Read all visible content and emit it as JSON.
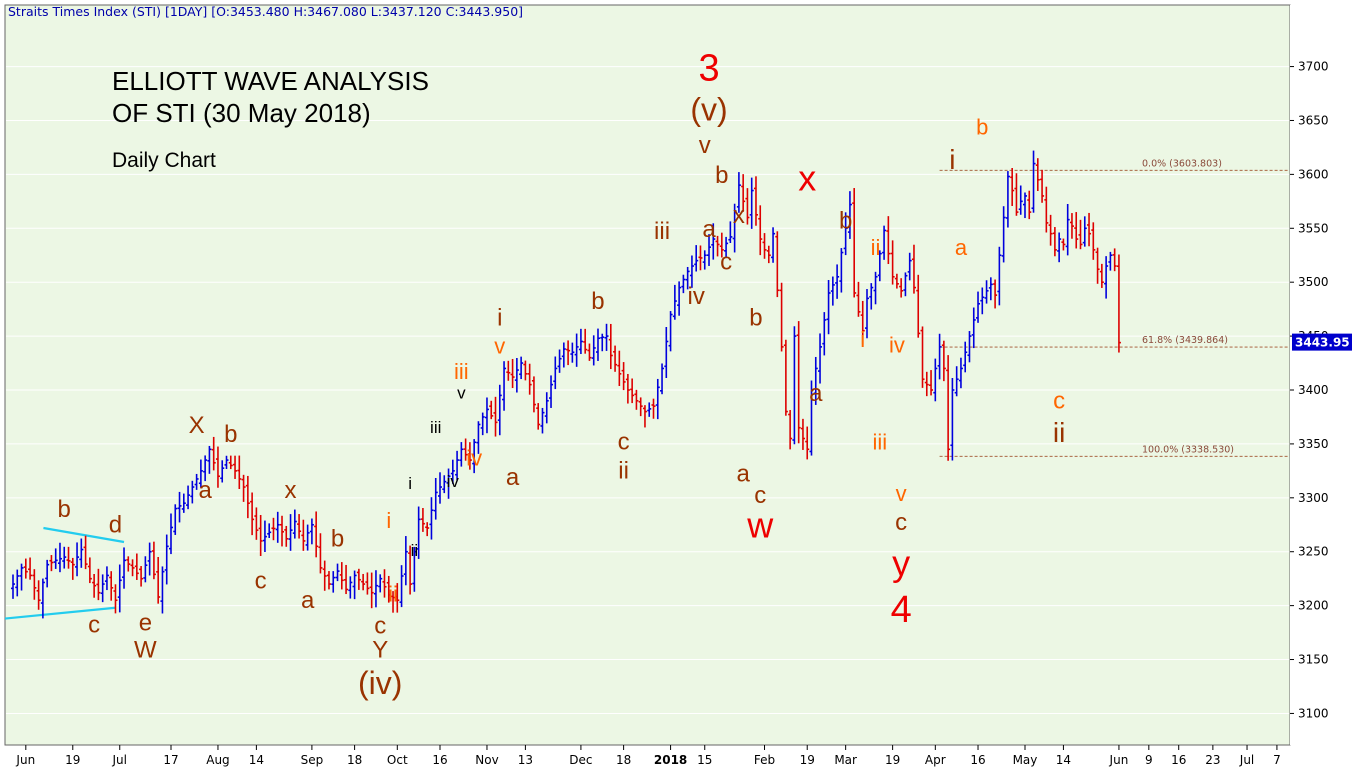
{
  "header": "Straits Times Index (STI) [1DAY] [O:3453.480 H:3467.080 L:3437.120 C:3443.950]",
  "title_line1": "ELLIOTT WAVE ANALYSIS",
  "title_line2": "OF STI (30 May 2018)",
  "subtitle": "Daily Chart",
  "last_price_label": "3443.95",
  "colors": {
    "up": "#0000dd",
    "down": "#dd0000",
    "background": "#ecf7e4",
    "trendline": "#22ccee",
    "fib": "#a0522d"
  },
  "chart_data": {
    "type": "ohlc",
    "ylim": [
      3080,
      3720
    ],
    "y_ticks": [
      3100,
      3150,
      3200,
      3250,
      3300,
      3350,
      3400,
      3450,
      3500,
      3550,
      3600,
      3650,
      3700
    ],
    "x_ticks": [
      {
        "label": "Jun",
        "d": 3
      },
      {
        "label": "19",
        "d": 14
      },
      {
        "label": "Jul",
        "d": 25
      },
      {
        "label": "17",
        "d": 37
      },
      {
        "label": "Aug",
        "d": 48
      },
      {
        "label": "14",
        "d": 57
      },
      {
        "label": "Sep",
        "d": 70
      },
      {
        "label": "18",
        "d": 80
      },
      {
        "label": "Oct",
        "d": 90
      },
      {
        "label": "16",
        "d": 100
      },
      {
        "label": "Nov",
        "d": 111
      },
      {
        "label": "13",
        "d": 120
      },
      {
        "label": "Dec",
        "d": 133
      },
      {
        "label": "18",
        "d": 143
      },
      {
        "label": "2018",
        "d": 154,
        "bold": true
      },
      {
        "label": "15",
        "d": 162
      },
      {
        "label": "Feb",
        "d": 176
      },
      {
        "label": "19",
        "d": 186
      },
      {
        "label": "Mar",
        "d": 195
      },
      {
        "label": "19",
        "d": 206
      },
      {
        "label": "Apr",
        "d": 216
      },
      {
        "label": "16",
        "d": 226
      },
      {
        "label": "May",
        "d": 237
      },
      {
        "label": "14",
        "d": 246
      },
      {
        "label": "Jun",
        "d": 259
      },
      {
        "label": "9",
        "d": 266
      },
      {
        "label": "16",
        "d": 273
      },
      {
        "label": "23",
        "d": 281
      },
      {
        "label": "Jul",
        "d": 289
      },
      {
        "label": "7",
        "d": 296
      }
    ],
    "anchors": [
      [
        0,
        3220
      ],
      [
        2,
        3235
      ],
      [
        4,
        3228
      ],
      [
        6,
        3205
      ],
      [
        8,
        3238
      ],
      [
        10,
        3242
      ],
      [
        12,
        3245
      ],
      [
        14,
        3238
      ],
      [
        16,
        3252
      ],
      [
        18,
        3225
      ],
      [
        20,
        3212
      ],
      [
        22,
        3228
      ],
      [
        24,
        3205
      ],
      [
        26,
        3242
      ],
      [
        28,
        3235
      ],
      [
        30,
        3225
      ],
      [
        32,
        3250
      ],
      [
        34,
        3208
      ],
      [
        36,
        3255
      ],
      [
        38,
        3290
      ],
      [
        40,
        3295
      ],
      [
        42,
        3310
      ],
      [
        44,
        3325
      ],
      [
        46,
        3345
      ],
      [
        48,
        3320
      ],
      [
        50,
        3335
      ],
      [
        52,
        3325
      ],
      [
        54,
        3310
      ],
      [
        56,
        3280
      ],
      [
        58,
        3260
      ],
      [
        60,
        3268
      ],
      [
        62,
        3275
      ],
      [
        64,
        3262
      ],
      [
        66,
        3278
      ],
      [
        68,
        3260
      ],
      [
        70,
        3275
      ],
      [
        72,
        3235
      ],
      [
        74,
        3220
      ],
      [
        76,
        3232
      ],
      [
        78,
        3215
      ],
      [
        80,
        3228
      ],
      [
        82,
        3220
      ],
      [
        84,
        3212
      ],
      [
        86,
        3225
      ],
      [
        88,
        3210
      ],
      [
        90,
        3205
      ],
      [
        92,
        3250
      ],
      [
        93,
        3220
      ],
      [
        95,
        3280
      ],
      [
        97,
        3272
      ],
      [
        99,
        3305
      ],
      [
        101,
        3315
      ],
      [
        103,
        3325
      ],
      [
        105,
        3345
      ],
      [
        107,
        3335
      ],
      [
        109,
        3368
      ],
      [
        111,
        3382
      ],
      [
        113,
        3370
      ],
      [
        115,
        3420
      ],
      [
        117,
        3412
      ],
      [
        119,
        3425
      ],
      [
        121,
        3405
      ],
      [
        123,
        3368
      ],
      [
        125,
        3390
      ],
      [
        127,
        3420
      ],
      [
        129,
        3438
      ],
      [
        131,
        3435
      ],
      [
        133,
        3445
      ],
      [
        135,
        3430
      ],
      [
        137,
        3448
      ],
      [
        139,
        3450
      ],
      [
        140,
        3432
      ],
      [
        142,
        3415
      ],
      [
        144,
        3400
      ],
      [
        146,
        3390
      ],
      [
        148,
        3380
      ],
      [
        150,
        3385
      ],
      [
        152,
        3420
      ],
      [
        154,
        3470
      ],
      [
        156,
        3495
      ],
      [
        158,
        3510
      ],
      [
        160,
        3520
      ],
      [
        162,
        3525
      ],
      [
        164,
        3540
      ],
      [
        166,
        3530
      ],
      [
        168,
        3542
      ],
      [
        170,
        3590
      ],
      [
        172,
        3560
      ],
      [
        173,
        3585
      ],
      [
        175,
        3540
      ],
      [
        176,
        3530
      ],
      [
        177,
        3525
      ],
      [
        178,
        3545
      ],
      [
        180,
        3440
      ],
      [
        181,
        3380
      ],
      [
        182,
        3355
      ],
      [
        183,
        3450
      ],
      [
        184,
        3365
      ],
      [
        186,
        3345
      ],
      [
        187,
        3400
      ],
      [
        189,
        3440
      ],
      [
        191,
        3490
      ],
      [
        193,
        3505
      ],
      [
        195,
        3550
      ],
      [
        196,
        3572
      ],
      [
        197,
        3490
      ],
      [
        199,
        3455
      ],
      [
        200,
        3485
      ],
      [
        202,
        3505
      ],
      [
        204,
        3548
      ],
      [
        206,
        3505
      ],
      [
        208,
        3492
      ],
      [
        210,
        3520
      ],
      [
        211,
        3495
      ],
      [
        213,
        3410
      ],
      [
        215,
        3400
      ],
      [
        217,
        3440
      ],
      [
        218,
        3420
      ],
      [
        219,
        3345
      ],
      [
        220,
        3400
      ],
      [
        222,
        3420
      ],
      [
        224,
        3450
      ],
      [
        226,
        3480
      ],
      [
        228,
        3492
      ],
      [
        229,
        3498
      ],
      [
        230,
        3488
      ],
      [
        231,
        3525
      ],
      [
        232,
        3560
      ],
      [
        233,
        3598
      ],
      [
        234,
        3585
      ],
      [
        235,
        3565
      ],
      [
        236,
        3575
      ],
      [
        237,
        3580
      ],
      [
        238,
        3565
      ],
      [
        239,
        3610
      ],
      [
        240,
        3595
      ],
      [
        241,
        3580
      ],
      [
        242,
        3555
      ],
      [
        243,
        3545
      ],
      [
        244,
        3530
      ],
      [
        245,
        3540
      ],
      [
        246,
        3535
      ],
      [
        247,
        3558
      ],
      [
        248,
        3552
      ],
      [
        249,
        3540
      ],
      [
        250,
        3535
      ],
      [
        251,
        3550
      ],
      [
        252,
        3545
      ],
      [
        253,
        3530
      ],
      [
        254,
        3512
      ],
      [
        255,
        3500
      ],
      [
        256,
        3515
      ],
      [
        257,
        3525
      ],
      [
        258,
        3515
      ],
      [
        259,
        3443.95
      ]
    ],
    "fib_levels": [
      {
        "label": "0.0% (3603.803)",
        "value": 3603.803
      },
      {
        "label": "61.8% (3439.864)",
        "value": 3439.864
      },
      {
        "label": "100.0% (3338.530)",
        "value": 3338.53
      }
    ],
    "trendlines": [
      {
        "from": [
          0,
          3188
        ],
        "to": [
          24,
          3198
        ]
      },
      {
        "from": [
          9,
          3272
        ],
        "to": [
          26,
          3259
        ]
      }
    ],
    "annotations": [
      {
        "text": "b",
        "d": 12,
        "y": 3282,
        "color": "#993300",
        "size": 24
      },
      {
        "text": "d",
        "d": 24,
        "y": 3268,
        "color": "#993300",
        "size": 24
      },
      {
        "text": "c",
        "d": 19,
        "y": 3175,
        "color": "#993300",
        "size": 24
      },
      {
        "text": "e",
        "d": 31,
        "y": 3177,
        "color": "#993300",
        "size": 24
      },
      {
        "text": "W",
        "d": 31,
        "y": 3152,
        "color": "#993300",
        "size": 24
      },
      {
        "text": "X",
        "d": 43,
        "y": 3360,
        "color": "#993300",
        "size": 24
      },
      {
        "text": "a",
        "d": 45,
        "y": 3300,
        "color": "#993300",
        "size": 24
      },
      {
        "text": "b",
        "d": 51,
        "y": 3352,
        "color": "#993300",
        "size": 24
      },
      {
        "text": "c",
        "d": 58,
        "y": 3216,
        "color": "#993300",
        "size": 24
      },
      {
        "text": "x",
        "d": 65,
        "y": 3300,
        "color": "#993300",
        "size": 24
      },
      {
        "text": "a",
        "d": 69,
        "y": 3198,
        "color": "#993300",
        "size": 24
      },
      {
        "text": "b",
        "d": 76,
        "y": 3255,
        "color": "#993300",
        "size": 24
      },
      {
        "text": "c",
        "d": 86,
        "y": 3174,
        "color": "#993300",
        "size": 24
      },
      {
        "text": "Y",
        "d": 86,
        "y": 3152,
        "color": "#993300",
        "size": 24
      },
      {
        "text": "(iv)",
        "d": 86,
        "y": 3118,
        "color": "#993300",
        "size": 32
      },
      {
        "text": "i",
        "d": 88,
        "y": 3272,
        "color": "#ff6600",
        "size": 22
      },
      {
        "text": "ii",
        "d": 89,
        "y": 3204,
        "color": "#ff6600",
        "size": 22
      },
      {
        "text": "i",
        "d": 93,
        "y": 3308,
        "color": "#000000",
        "size": 17
      },
      {
        "text": "ii",
        "d": 94,
        "y": 3246,
        "color": "#000000",
        "size": 17
      },
      {
        "text": "iii",
        "d": 99,
        "y": 3360,
        "color": "#000000",
        "size": 17
      },
      {
        "text": "iv",
        "d": 103,
        "y": 3310,
        "color": "#000000",
        "size": 17
      },
      {
        "text": "v",
        "d": 105,
        "y": 3392,
        "color": "#000000",
        "size": 17
      },
      {
        "text": "iii",
        "d": 105,
        "y": 3410,
        "color": "#ff6600",
        "size": 22
      },
      {
        "text": "iv",
        "d": 108,
        "y": 3330,
        "color": "#ff6600",
        "size": 22
      },
      {
        "text": "i",
        "d": 114,
        "y": 3460,
        "color": "#993300",
        "size": 24
      },
      {
        "text": "v",
        "d": 114,
        "y": 3434,
        "color": "#ff6600",
        "size": 22
      },
      {
        "text": "a",
        "d": 117,
        "y": 3312,
        "color": "#993300",
        "size": 24
      },
      {
        "text": "b",
        "d": 137,
        "y": 3475,
        "color": "#993300",
        "size": 24
      },
      {
        "text": "c",
        "d": 143,
        "y": 3345,
        "color": "#993300",
        "size": 24
      },
      {
        "text": "ii",
        "d": 143,
        "y": 3318,
        "color": "#993300",
        "size": 24
      },
      {
        "text": "iii",
        "d": 152,
        "y": 3540,
        "color": "#993300",
        "size": 24
      },
      {
        "text": "iv",
        "d": 160,
        "y": 3480,
        "color": "#993300",
        "size": 24
      },
      {
        "text": "a",
        "d": 163,
        "y": 3542,
        "color": "#993300",
        "size": 24
      },
      {
        "text": "v",
        "d": 162,
        "y": 3620,
        "color": "#993300",
        "size": 24
      },
      {
        "text": "b",
        "d": 166,
        "y": 3592,
        "color": "#993300",
        "size": 24
      },
      {
        "text": "x",
        "d": 170,
        "y": 3555,
        "color": "#993300",
        "size": 24
      },
      {
        "text": "c",
        "d": 167,
        "y": 3512,
        "color": "#993300",
        "size": 24
      },
      {
        "text": "(v)",
        "d": 163,
        "y": 3650,
        "color": "#993300",
        "size": 32
      },
      {
        "text": "3",
        "d": 163,
        "y": 3687,
        "color": "#ee0000",
        "size": 38
      },
      {
        "text": "b",
        "d": 174,
        "y": 3460,
        "color": "#993300",
        "size": 24
      },
      {
        "text": "a",
        "d": 171,
        "y": 3315,
        "color": "#993300",
        "size": 24
      },
      {
        "text": "c",
        "d": 175,
        "y": 3295,
        "color": "#993300",
        "size": 24
      },
      {
        "text": "w",
        "d": 175,
        "y": 3263,
        "color": "#ee0000",
        "size": 36
      },
      {
        "text": "x",
        "d": 186,
        "y": 3585,
        "color": "#ee0000",
        "size": 36
      },
      {
        "text": "b",
        "d": 195,
        "y": 3550,
        "color": "#993300",
        "size": 24
      },
      {
        "text": "a",
        "d": 188,
        "y": 3390,
        "color": "#993300",
        "size": 24
      },
      {
        "text": "ii",
        "d": 202,
        "y": 3525,
        "color": "#ff6600",
        "size": 22
      },
      {
        "text": "i",
        "d": 199,
        "y": 3440,
        "color": "#ff6600",
        "size": 22
      },
      {
        "text": "iv",
        "d": 207,
        "y": 3435,
        "color": "#ff6600",
        "size": 22
      },
      {
        "text": "iii",
        "d": 203,
        "y": 3345,
        "color": "#ff6600",
        "size": 22
      },
      {
        "text": "v",
        "d": 208,
        "y": 3297,
        "color": "#ff6600",
        "size": 22
      },
      {
        "text": "c",
        "d": 208,
        "y": 3270,
        "color": "#993300",
        "size": 24
      },
      {
        "text": "y",
        "d": 208,
        "y": 3228,
        "color": "#ee0000",
        "size": 36
      },
      {
        "text": "4",
        "d": 208,
        "y": 3185,
        "color": "#ee0000",
        "size": 38
      },
      {
        "text": "i",
        "d": 220,
        "y": 3605,
        "color": "#993300",
        "size": 28
      },
      {
        "text": "b",
        "d": 227,
        "y": 3637,
        "color": "#ff6600",
        "size": 22
      },
      {
        "text": "a",
        "d": 222,
        "y": 3525,
        "color": "#ff6600",
        "size": 22
      },
      {
        "text": "c",
        "d": 245,
        "y": 3383,
        "color": "#ff6600",
        "size": 24
      },
      {
        "text": "ii",
        "d": 245,
        "y": 3352,
        "color": "#993300",
        "size": 28
      }
    ]
  }
}
